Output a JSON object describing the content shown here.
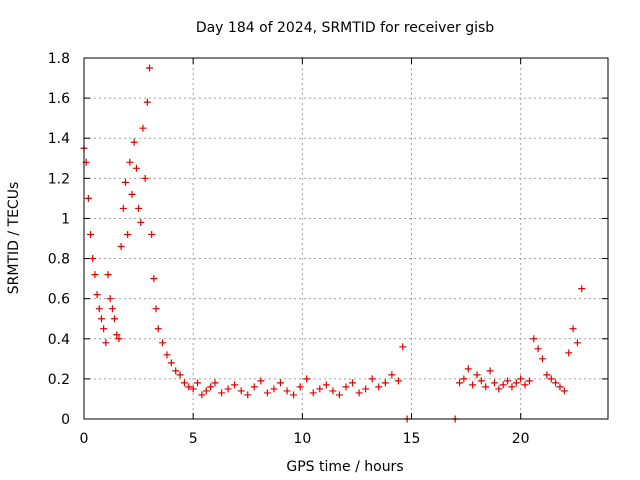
{
  "chart_data": {
    "type": "scatter",
    "title": "Day 184 of 2024, SRMTID for receiver gisb",
    "xlabel": "GPS time / hours",
    "ylabel": "SRMTID / TECUs",
    "xlim": [
      0,
      24
    ],
    "ylim": [
      0,
      1.8
    ],
    "x_ticks": [
      0,
      5,
      10,
      15,
      20
    ],
    "x_tick_labels": [
      "0",
      "5",
      "10",
      "15",
      "20"
    ],
    "y_ticks": [
      0,
      0.2,
      0.4,
      0.6,
      0.8,
      1.0,
      1.2,
      1.4,
      1.6,
      1.8
    ],
    "y_tick_labels": [
      "0",
      "0.2",
      "0.4",
      "0.6",
      "0.8",
      "1",
      "1.2",
      "1.4",
      "1.6",
      "1.8"
    ],
    "grid": true,
    "marker": "+",
    "marker_color": "#e00000",
    "series": [
      {
        "name": "SRMTID",
        "x": [
          0.0,
          0.1,
          0.2,
          0.3,
          0.4,
          0.5,
          0.6,
          0.7,
          0.8,
          0.9,
          1.0,
          1.1,
          1.2,
          1.3,
          1.4,
          1.5,
          1.6,
          1.7,
          1.8,
          1.9,
          2.0,
          2.1,
          2.2,
          2.3,
          2.4,
          2.5,
          2.6,
          2.7,
          2.8,
          2.9,
          3.0,
          3.1,
          3.2,
          3.3,
          3.4,
          3.6,
          3.8,
          4.0,
          4.2,
          4.4,
          4.6,
          4.8,
          5.0,
          5.2,
          5.4,
          5.6,
          5.8,
          6.0,
          6.3,
          6.6,
          6.9,
          7.2,
          7.5,
          7.8,
          8.1,
          8.4,
          8.7,
          9.0,
          9.3,
          9.6,
          9.9,
          10.2,
          10.5,
          10.8,
          11.1,
          11.4,
          11.7,
          12.0,
          12.3,
          12.6,
          12.9,
          13.2,
          13.5,
          13.8,
          14.1,
          14.4,
          14.6,
          14.8,
          17.0,
          17.2,
          17.4,
          17.6,
          17.8,
          18.0,
          18.2,
          18.4,
          18.6,
          18.8,
          19.0,
          19.2,
          19.4,
          19.6,
          19.8,
          20.0,
          20.2,
          20.4,
          20.6,
          20.8,
          21.0,
          21.2,
          21.4,
          21.6,
          21.8,
          22.0,
          22.2,
          22.4,
          22.6,
          22.8
        ],
        "y": [
          1.35,
          1.28,
          1.1,
          0.92,
          0.8,
          0.72,
          0.62,
          0.55,
          0.5,
          0.45,
          0.38,
          0.72,
          0.6,
          0.55,
          0.5,
          0.42,
          0.4,
          0.86,
          1.05,
          1.18,
          0.92,
          1.28,
          1.12,
          1.38,
          1.25,
          1.05,
          0.98,
          1.45,
          1.2,
          1.58,
          1.75,
          0.92,
          0.7,
          0.55,
          0.45,
          0.38,
          0.32,
          0.28,
          0.24,
          0.22,
          0.18,
          0.16,
          0.15,
          0.18,
          0.12,
          0.14,
          0.16,
          0.18,
          0.13,
          0.15,
          0.17,
          0.14,
          0.12,
          0.16,
          0.19,
          0.13,
          0.15,
          0.18,
          0.14,
          0.12,
          0.16,
          0.2,
          0.13,
          0.15,
          0.17,
          0.14,
          0.12,
          0.16,
          0.18,
          0.13,
          0.15,
          0.2,
          0.16,
          0.18,
          0.22,
          0.19,
          0.36,
          0.0,
          0.0,
          0.18,
          0.2,
          0.25,
          0.17,
          0.22,
          0.19,
          0.16,
          0.24,
          0.18,
          0.15,
          0.17,
          0.19,
          0.16,
          0.18,
          0.2,
          0.17,
          0.19,
          0.4,
          0.35,
          0.3,
          0.22,
          0.2,
          0.18,
          0.16,
          0.14,
          0.33,
          0.45,
          0.38,
          0.65
        ]
      }
    ]
  }
}
